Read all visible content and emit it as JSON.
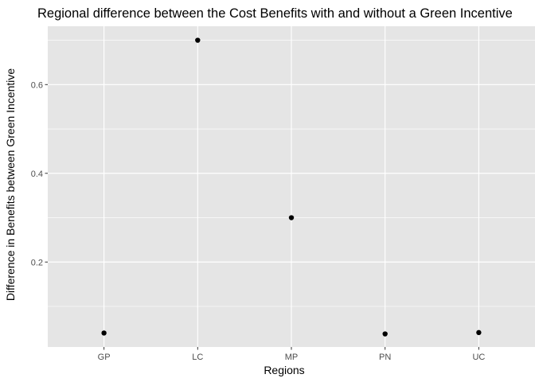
{
  "chart_data": {
    "type": "scatter",
    "title": "Regional difference between the Cost Benefits with and without a Green Incentive",
    "xlabel": "Regions",
    "ylabel": "Difference in Benefits between Green Incentive",
    "categories": [
      "GP",
      "LC",
      "MP",
      "PN",
      "UC"
    ],
    "values": [
      0.04,
      0.7,
      0.3,
      0.038,
      0.041
    ],
    "yticks": [
      "0.2",
      "0.4",
      "0.6"
    ],
    "ylim": [
      0.0085,
      0.7315
    ],
    "grid": true,
    "legend": "none",
    "colors": {
      "panel": "#e5e5e5",
      "grid": "#ffffff",
      "point": "#000000"
    }
  }
}
